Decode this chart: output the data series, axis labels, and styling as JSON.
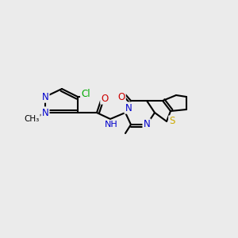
{
  "background_color": "#ebebeb",
  "atom_colors": {
    "C": "#000000",
    "N": "#0000cc",
    "O": "#cc0000",
    "S": "#ccaa00",
    "Cl": "#00aa00",
    "H": "#777777"
  },
  "figsize": [
    3.0,
    3.0
  ],
  "dpi": 100
}
